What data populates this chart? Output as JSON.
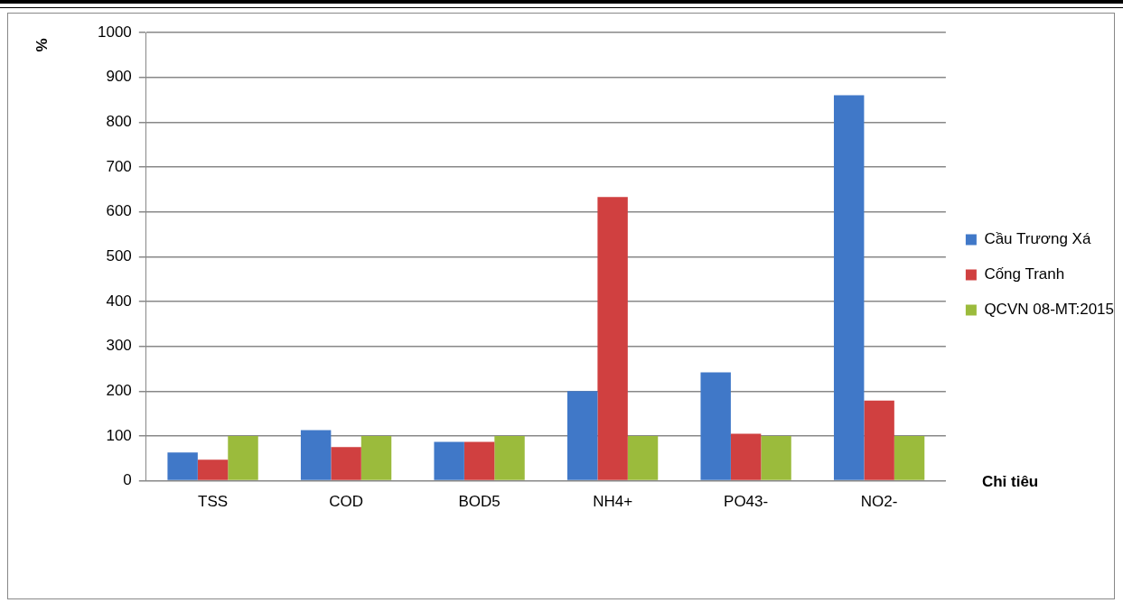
{
  "chart_data": {
    "type": "bar",
    "ylabel": "%",
    "xlabel": "Chỉ tiêu",
    "categories": [
      "TSS",
      "COD",
      "BOD5",
      "NH4+",
      "PO43-",
      "NO2-"
    ],
    "series": [
      {
        "name": "Cầu Trương Xá",
        "color": "#4078c8",
        "values": [
          63,
          113,
          87,
          200,
          242,
          860
        ]
      },
      {
        "name": "Cống Tranh",
        "color": "#d04040",
        "values": [
          47,
          75,
          87,
          633,
          105,
          179
        ]
      },
      {
        "name": "QCVN 08-MT:2015",
        "color": "#9bbb3c",
        "values": [
          100,
          100,
          100,
          100,
          100,
          100
        ]
      }
    ],
    "ylim": [
      0,
      1000
    ],
    "yticks": [
      0,
      100,
      200,
      300,
      400,
      500,
      600,
      700,
      800,
      900,
      1000
    ],
    "grid": "y",
    "legend": "right"
  }
}
